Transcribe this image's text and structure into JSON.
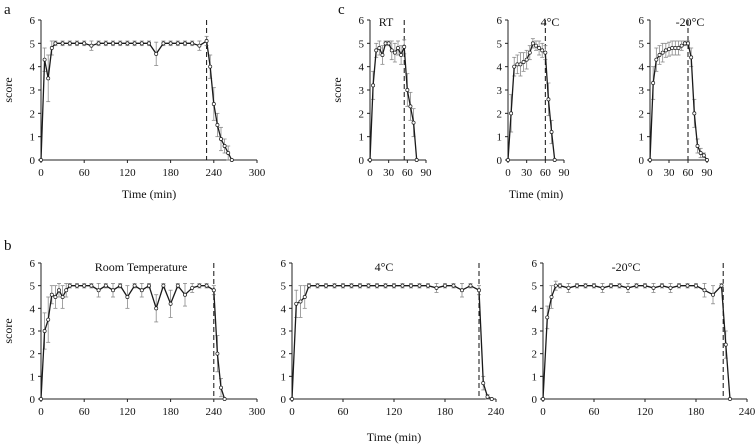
{
  "colors": {
    "line": "#1a1a1a",
    "marker_fill": "#ffffff",
    "error_bar": "#8a8a8a",
    "axis": "#222222"
  },
  "chart_data": [
    {
      "id": "a",
      "type": "line",
      "panel_letter": "a",
      "title": "",
      "xlabel": "Time (min)",
      "ylabel": "score",
      "xlim": [
        0,
        300
      ],
      "ylim": [
        0,
        6
      ],
      "xticks": [
        0,
        60,
        120,
        180,
        240,
        300
      ],
      "yticks": [
        0,
        1,
        2,
        3,
        4,
        5,
        6
      ],
      "cutoff_x": 230,
      "series": [
        {
          "name": "score",
          "x": [
            0,
            5,
            10,
            15,
            20,
            30,
            40,
            50,
            60,
            70,
            80,
            90,
            100,
            110,
            120,
            130,
            140,
            150,
            160,
            170,
            180,
            190,
            200,
            210,
            220,
            230,
            235,
            240,
            245,
            250,
            255,
            260,
            265
          ],
          "y": [
            0,
            4.3,
            3.5,
            4.8,
            5,
            5,
            5,
            5,
            5,
            4.9,
            5,
            5,
            5,
            5,
            5,
            5,
            5,
            5,
            4.55,
            5,
            5,
            5,
            5,
            5,
            4.9,
            5.1,
            4,
            2.4,
            1.5,
            0.9,
            0.6,
            0.3,
            0
          ],
          "err": [
            0,
            0.5,
            1.0,
            0.3,
            0.1,
            0.1,
            0.1,
            0.1,
            0.1,
            0.2,
            0.1,
            0.1,
            0.1,
            0.1,
            0.1,
            0.1,
            0.1,
            0.1,
            0.5,
            0.1,
            0.1,
            0.1,
            0.1,
            0.1,
            0.2,
            0.2,
            0.5,
            0.7,
            0.5,
            0.5,
            0.3,
            0.3,
            0
          ]
        }
      ]
    },
    {
      "id": "c-rt",
      "type": "line",
      "panel_letter": "c",
      "title": "RT",
      "xlabel": "",
      "ylabel": "score",
      "xlim": [
        0,
        90
      ],
      "ylim": [
        0,
        6
      ],
      "xticks": [
        0,
        30,
        60,
        90
      ],
      "yticks": [
        0,
        1,
        2,
        3,
        4,
        5,
        6
      ],
      "cutoff_x": 55,
      "series": [
        {
          "name": "score",
          "x": [
            0,
            5,
            10,
            15,
            20,
            25,
            30,
            35,
            40,
            45,
            50,
            55,
            60,
            65,
            70,
            75
          ],
          "y": [
            0,
            3.2,
            4.7,
            4.8,
            4.5,
            5,
            5,
            4.7,
            4.6,
            4.8,
            4.5,
            4.85,
            3,
            2.3,
            1.6,
            0
          ],
          "err": [
            0,
            0.6,
            0.3,
            0.3,
            0.4,
            0.1,
            0.1,
            0.4,
            0.4,
            0.3,
            0.4,
            0.3,
            0.7,
            0.6,
            0.6,
            0
          ]
        }
      ]
    },
    {
      "id": "c-4c",
      "type": "line",
      "panel_letter": "",
      "title": "4°C",
      "xlabel": "Time (min)",
      "ylabel": "",
      "xlim": [
        0,
        90
      ],
      "ylim": [
        0,
        6
      ],
      "xticks": [
        0,
        30,
        60,
        90
      ],
      "yticks": [
        0,
        1,
        2,
        3,
        4,
        5,
        6
      ],
      "cutoff_x": 60,
      "series": [
        {
          "name": "score",
          "x": [
            0,
            5,
            10,
            15,
            20,
            25,
            30,
            35,
            40,
            45,
            50,
            55,
            60,
            65,
            70,
            75
          ],
          "y": [
            0,
            2,
            4,
            4.1,
            4.1,
            4.2,
            4.3,
            4.6,
            5,
            4.9,
            4.8,
            4.7,
            4.6,
            2.6,
            1.2,
            0
          ],
          "err": [
            0,
            0.8,
            0.4,
            0.4,
            0.5,
            0.4,
            0.4,
            0.3,
            0.2,
            0.2,
            0.3,
            0.3,
            0.3,
            0.7,
            0.5,
            0
          ]
        }
      ]
    },
    {
      "id": "c-20c",
      "type": "line",
      "panel_letter": "",
      "title": "-20°C",
      "xlabel": "",
      "ylabel": "",
      "xlim": [
        0,
        90
      ],
      "ylim": [
        0,
        6
      ],
      "xticks": [
        0,
        30,
        60,
        90
      ],
      "yticks": [
        0,
        1,
        2,
        3,
        4,
        5,
        6
      ],
      "cutoff_x": 60,
      "series": [
        {
          "name": "score",
          "x": [
            0,
            5,
            10,
            15,
            20,
            25,
            30,
            35,
            40,
            45,
            50,
            55,
            60,
            65,
            70,
            75,
            80,
            85,
            90
          ],
          "y": [
            0,
            3.3,
            4.3,
            4.5,
            4.6,
            4.7,
            4.75,
            4.8,
            4.8,
            4.8,
            4.9,
            5,
            5,
            4.4,
            2.0,
            0.6,
            0.3,
            0.2,
            0
          ],
          "err": [
            0,
            0.7,
            0.5,
            0.4,
            0.4,
            0.3,
            0.3,
            0.3,
            0.3,
            0.3,
            0.2,
            0.1,
            0.1,
            0.4,
            0.6,
            0.3,
            0.2,
            0.1,
            0
          ]
        }
      ]
    },
    {
      "id": "b-room",
      "type": "line",
      "panel_letter": "b",
      "title": "Room Temperature",
      "xlabel": "",
      "ylabel": "score",
      "xlim": [
        0,
        300
      ],
      "ylim": [
        0,
        6
      ],
      "xticks": [
        0,
        60,
        120,
        180,
        240,
        300
      ],
      "yticks": [
        0,
        1,
        2,
        3,
        4,
        5,
        6
      ],
      "cutoff_x": 240,
      "series": [
        {
          "name": "score",
          "x": [
            0,
            5,
            10,
            15,
            20,
            25,
            30,
            35,
            40,
            50,
            60,
            70,
            80,
            90,
            100,
            110,
            120,
            130,
            140,
            150,
            160,
            170,
            180,
            190,
            200,
            210,
            220,
            230,
            240,
            245,
            250,
            255
          ],
          "y": [
            0,
            3,
            3.5,
            4.6,
            4.5,
            4.8,
            4.5,
            4.8,
            5,
            5,
            5,
            5,
            4.8,
            5,
            4.8,
            5,
            4.5,
            5,
            4.8,
            5,
            4.0,
            5,
            4.2,
            5,
            4.6,
            4.9,
            5,
            5,
            4.8,
            2.0,
            0.5,
            0
          ],
          "err": [
            0,
            0.8,
            1.0,
            0.4,
            0.5,
            0.3,
            0.5,
            0.3,
            0.1,
            0.1,
            0.1,
            0.1,
            0.3,
            0.1,
            0.3,
            0.1,
            0.5,
            0.1,
            0.3,
            0.1,
            0.6,
            0.1,
            0.6,
            0.1,
            0.5,
            0.2,
            0.1,
            0.1,
            0.2,
            0.8,
            0.4,
            0
          ]
        }
      ]
    },
    {
      "id": "b-4c",
      "type": "line",
      "panel_letter": "",
      "title": "4°C",
      "xlabel": "Time (min)",
      "ylabel": "",
      "xlim": [
        0,
        240
      ],
      "ylim": [
        0,
        6
      ],
      "xticks": [
        0,
        60,
        120,
        180,
        240
      ],
      "yticks": [
        0,
        1,
        2,
        3,
        4,
        5,
        6
      ],
      "cutoff_x": 220,
      "series": [
        {
          "name": "score",
          "x": [
            0,
            5,
            10,
            15,
            20,
            30,
            40,
            50,
            60,
            70,
            80,
            90,
            100,
            110,
            120,
            130,
            140,
            150,
            160,
            170,
            180,
            190,
            200,
            210,
            220,
            225,
            230,
            235
          ],
          "y": [
            0,
            4.2,
            4.3,
            4.5,
            5,
            5,
            5,
            5,
            5,
            5,
            5,
            5,
            5,
            5,
            5,
            5,
            5,
            5,
            5,
            4.9,
            5,
            5,
            4.8,
            5,
            4.8,
            0.7,
            0.1,
            0
          ],
          "err": [
            0,
            0.6,
            0.7,
            0.5,
            0.1,
            0.1,
            0.1,
            0.1,
            0.1,
            0.1,
            0.1,
            0.1,
            0.1,
            0.1,
            0.1,
            0.1,
            0.1,
            0.1,
            0.1,
            0.2,
            0.1,
            0.1,
            0.3,
            0.1,
            0.2,
            0.3,
            0.1,
            0
          ]
        }
      ]
    },
    {
      "id": "b-20c",
      "type": "line",
      "panel_letter": "",
      "title": "-20°C",
      "xlabel": "",
      "ylabel": "",
      "xlim": [
        0,
        240
      ],
      "ylim": [
        0,
        6
      ],
      "xticks": [
        0,
        60,
        120,
        180,
        240
      ],
      "yticks": [
        0,
        1,
        2,
        3,
        4,
        5,
        6
      ],
      "cutoff_x": 212,
      "series": [
        {
          "name": "score",
          "x": [
            0,
            5,
            10,
            15,
            20,
            30,
            40,
            50,
            60,
            70,
            80,
            90,
            100,
            110,
            120,
            130,
            140,
            150,
            160,
            170,
            180,
            190,
            200,
            210,
            215,
            220
          ],
          "y": [
            0,
            3.6,
            4.5,
            5,
            5,
            4.9,
            5,
            5,
            5,
            4.9,
            5,
            5,
            4.9,
            5,
            5,
            4.9,
            5,
            4.9,
            5,
            5,
            5,
            4.8,
            4.6,
            5,
            2.4,
            0
          ],
          "err": [
            0,
            0.5,
            0.5,
            0.2,
            0.1,
            0.2,
            0.1,
            0.1,
            0.1,
            0.2,
            0.1,
            0.1,
            0.2,
            0.1,
            0.1,
            0.2,
            0.1,
            0.2,
            0.1,
            0.1,
            0.1,
            0.3,
            0.4,
            0.1,
            0.6,
            0
          ]
        }
      ]
    }
  ]
}
